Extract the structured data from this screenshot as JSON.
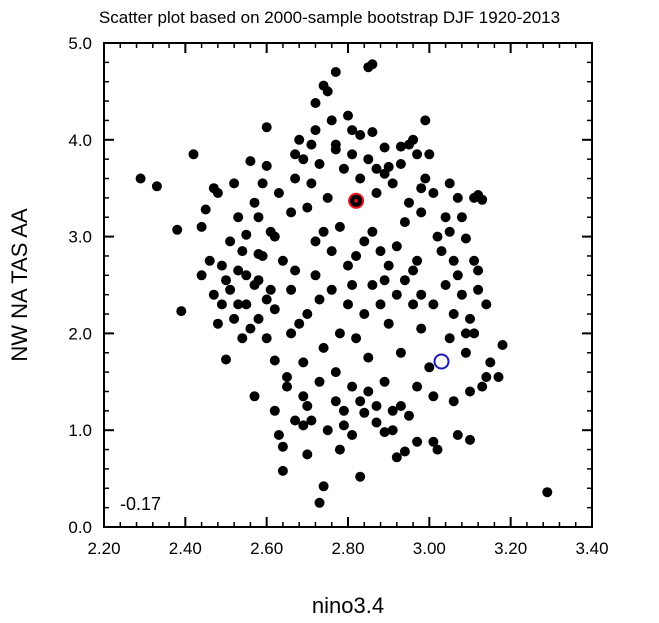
{
  "chart_data": {
    "type": "scatter",
    "title": "Scatter plot based on 2000-sample bootstrap DJF 1920-2013",
    "xlabel": "nino3.4",
    "ylabel": "NW NA TAS AA",
    "xlim": [
      2.2,
      3.4
    ],
    "ylim": [
      0.0,
      5.0
    ],
    "x_ticks": [
      "2.20",
      "2.40",
      "2.60",
      "2.80",
      "3.00",
      "3.20",
      "3.40"
    ],
    "y_ticks": [
      "0.0",
      "1.0",
      "2.0",
      "3.0",
      "4.0",
      "5.0"
    ],
    "annotation": "-0.17",
    "grid": false,
    "point_color": "#000000",
    "highlights": [
      {
        "x": 2.82,
        "y": 3.37,
        "color": "#e8141e"
      },
      {
        "x": 3.03,
        "y": 1.71,
        "color": "#1a1ab4"
      }
    ],
    "series": [
      {
        "points": [
          [
            2.29,
            3.6
          ],
          [
            2.33,
            3.52
          ],
          [
            2.38,
            3.07
          ],
          [
            2.39,
            2.23
          ],
          [
            2.42,
            3.85
          ],
          [
            2.44,
            3.1
          ],
          [
            2.45,
            3.28
          ],
          [
            2.47,
            3.5
          ],
          [
            2.48,
            3.45
          ],
          [
            2.47,
            2.4
          ],
          [
            2.49,
            2.7
          ],
          [
            2.5,
            1.73
          ],
          [
            2.51,
            2.95
          ],
          [
            2.52,
            3.55
          ],
          [
            2.53,
            3.2
          ],
          [
            2.53,
            2.3
          ],
          [
            2.54,
            1.95
          ],
          [
            2.55,
            2.6
          ],
          [
            2.55,
            3.02
          ],
          [
            2.56,
            3.78
          ],
          [
            2.57,
            3.35
          ],
          [
            2.57,
            1.35
          ],
          [
            2.58,
            2.15
          ],
          [
            2.58,
            2.82
          ],
          [
            2.59,
            3.55
          ],
          [
            2.6,
            3.73
          ],
          [
            2.6,
            4.13
          ],
          [
            2.61,
            3.05
          ],
          [
            2.61,
            2.45
          ],
          [
            2.62,
            1.72
          ],
          [
            2.62,
            1.2
          ],
          [
            2.63,
            0.95
          ],
          [
            2.64,
            0.58
          ],
          [
            2.64,
            0.83
          ],
          [
            2.65,
            1.45
          ],
          [
            2.66,
            2.0
          ],
          [
            2.67,
            2.65
          ],
          [
            2.67,
            3.85
          ],
          [
            2.68,
            4.0
          ],
          [
            2.69,
            1.05
          ],
          [
            2.7,
            0.75
          ],
          [
            2.7,
            1.25
          ],
          [
            2.71,
            3.95
          ],
          [
            2.72,
            4.38
          ],
          [
            2.72,
            4.1
          ],
          [
            2.73,
            0.25
          ],
          [
            2.74,
            0.42
          ],
          [
            2.74,
            4.56
          ],
          [
            2.75,
            4.5
          ],
          [
            2.76,
            4.2
          ],
          [
            2.77,
            3.95
          ],
          [
            2.77,
            4.7
          ],
          [
            2.78,
            0.8
          ],
          [
            2.79,
            1.2
          ],
          [
            2.8,
            4.25
          ],
          [
            2.81,
            4.1
          ],
          [
            2.81,
            0.95
          ],
          [
            2.83,
            4.05
          ],
          [
            2.83,
            0.52
          ],
          [
            2.84,
            1.18
          ],
          [
            2.85,
            4.75
          ],
          [
            2.86,
            4.78
          ],
          [
            2.86,
            4.08
          ],
          [
            2.87,
            3.7
          ],
          [
            2.87,
            1.08
          ],
          [
            2.89,
            3.92
          ],
          [
            2.89,
            0.98
          ],
          [
            2.9,
            3.72
          ],
          [
            2.91,
            1.2
          ],
          [
            2.92,
            0.72
          ],
          [
            2.93,
            3.93
          ],
          [
            2.94,
            0.78
          ],
          [
            2.95,
            3.95
          ],
          [
            2.96,
            4.0
          ],
          [
            2.97,
            0.88
          ],
          [
            2.98,
            3.5
          ],
          [
            2.99,
            4.2
          ],
          [
            3.0,
            3.85
          ],
          [
            3.01,
            3.45
          ],
          [
            3.01,
            0.88
          ],
          [
            3.02,
            0.8
          ],
          [
            3.04,
            3.2
          ],
          [
            3.05,
            3.05
          ],
          [
            3.06,
            1.3
          ],
          [
            3.07,
            0.95
          ],
          [
            3.08,
            3.2
          ],
          [
            3.09,
            2.98
          ],
          [
            3.1,
            0.9
          ],
          [
            3.11,
            2.75
          ],
          [
            3.12,
            2.45
          ],
          [
            3.13,
            1.45
          ],
          [
            3.14,
            2.3
          ],
          [
            3.15,
            1.7
          ],
          [
            3.17,
            1.55
          ],
          [
            3.18,
            1.88
          ],
          [
            3.29,
            0.36
          ],
          [
            3.11,
            3.4
          ],
          [
            3.12,
            3.43
          ],
          [
            3.1,
            1.4
          ],
          [
            3.13,
            3.38
          ],
          [
            3.14,
            1.55
          ],
          [
            3.09,
            2.0
          ],
          [
            3.05,
            3.55
          ],
          [
            2.98,
            3.25
          ],
          [
            2.68,
            2.1
          ],
          [
            2.72,
            2.95
          ],
          [
            2.76,
            2.45
          ],
          [
            2.8,
            2.7
          ],
          [
            2.84,
            2.2
          ],
          [
            2.88,
            2.85
          ],
          [
            2.92,
            2.4
          ],
          [
            2.96,
            2.65
          ],
          [
            2.7,
            3.3
          ],
          [
            2.74,
            1.85
          ],
          [
            2.78,
            3.1
          ],
          [
            2.82,
            1.95
          ],
          [
            2.86,
            3.05
          ],
          [
            2.9,
            2.1
          ],
          [
            2.94,
            3.15
          ],
          [
            2.98,
            2.05
          ],
          [
            2.64,
            2.75
          ],
          [
            2.66,
            3.25
          ],
          [
            2.69,
            1.7
          ],
          [
            2.73,
            2.35
          ],
          [
            2.77,
            1.6
          ],
          [
            2.81,
            2.5
          ],
          [
            2.85,
            1.75
          ],
          [
            2.89,
            2.55
          ],
          [
            2.93,
            1.8
          ],
          [
            2.97,
            2.75
          ],
          [
            3.01,
            2.3
          ],
          [
            3.03,
            2.85
          ],
          [
            3.05,
            1.95
          ],
          [
            3.07,
            2.6
          ],
          [
            3.0,
            1.65
          ],
          [
            2.62,
            2.25
          ],
          [
            2.6,
            1.95
          ],
          [
            2.58,
            2.55
          ],
          [
            2.56,
            2.05
          ],
          [
            2.54,
            2.85
          ],
          [
            2.52,
            2.15
          ],
          [
            2.5,
            2.55
          ],
          [
            2.48,
            2.1
          ],
          [
            2.46,
            2.75
          ],
          [
            2.63,
            3.45
          ],
          [
            2.67,
            3.6
          ],
          [
            2.71,
            3.55
          ],
          [
            2.75,
            3.4
          ],
          [
            2.79,
            3.7
          ],
          [
            2.83,
            3.6
          ],
          [
            2.87,
            3.45
          ],
          [
            2.91,
            3.55
          ],
          [
            2.95,
            3.35
          ],
          [
            2.99,
            3.6
          ],
          [
            2.65,
            1.55
          ],
          [
            2.69,
            1.35
          ],
          [
            2.73,
            1.5
          ],
          [
            2.77,
            1.3
          ],
          [
            2.81,
            1.45
          ],
          [
            2.85,
            1.4
          ],
          [
            2.89,
            1.5
          ],
          [
            2.93,
            1.25
          ],
          [
            2.97,
            1.45
          ],
          [
            3.01,
            1.35
          ],
          [
            2.72,
            2.6
          ],
          [
            2.76,
            2.85
          ],
          [
            2.8,
            2.3
          ],
          [
            2.84,
            2.95
          ],
          [
            2.88,
            2.3
          ],
          [
            2.92,
            2.9
          ],
          [
            2.96,
            2.3
          ],
          [
            2.78,
            2.0
          ],
          [
            2.82,
            2.8
          ],
          [
            2.86,
            2.5
          ],
          [
            2.74,
            3.05
          ],
          [
            2.9,
            2.7
          ],
          [
            2.66,
            2.45
          ],
          [
            2.94,
            2.55
          ],
          [
            2.7,
            2.2
          ],
          [
            2.98,
            2.4
          ],
          [
            2.62,
            3.0
          ],
          [
            3.02,
            3.0
          ],
          [
            2.58,
            3.2
          ],
          [
            3.06,
            2.2
          ],
          [
            2.71,
            1.1
          ],
          [
            2.75,
            1.0
          ],
          [
            2.79,
            1.05
          ],
          [
            2.83,
            1.3
          ],
          [
            2.87,
            1.25
          ],
          [
            2.91,
            1.0
          ],
          [
            2.67,
            1.1
          ],
          [
            2.95,
            1.15
          ],
          [
            2.77,
            3.9
          ],
          [
            2.81,
            3.85
          ],
          [
            2.85,
            3.8
          ],
          [
            2.73,
            3.75
          ],
          [
            2.89,
            3.65
          ],
          [
            2.69,
            3.8
          ],
          [
            2.93,
            3.75
          ],
          [
            2.97,
            3.85
          ],
          [
            2.6,
            2.35
          ],
          [
            2.59,
            2.8
          ],
          [
            2.57,
            2.5
          ],
          [
            2.55,
            2.3
          ],
          [
            2.53,
            2.65
          ],
          [
            2.51,
            2.45
          ],
          [
            2.49,
            2.3
          ],
          [
            2.44,
            2.6
          ],
          [
            3.08,
            2.4
          ],
          [
            3.1,
            2.15
          ],
          [
            3.12,
            2.65
          ],
          [
            3.09,
            1.8
          ],
          [
            3.11,
            2.0
          ],
          [
            3.07,
            3.4
          ],
          [
            3.04,
            2.5
          ],
          [
            3.06,
            2.75
          ]
        ]
      }
    ]
  }
}
